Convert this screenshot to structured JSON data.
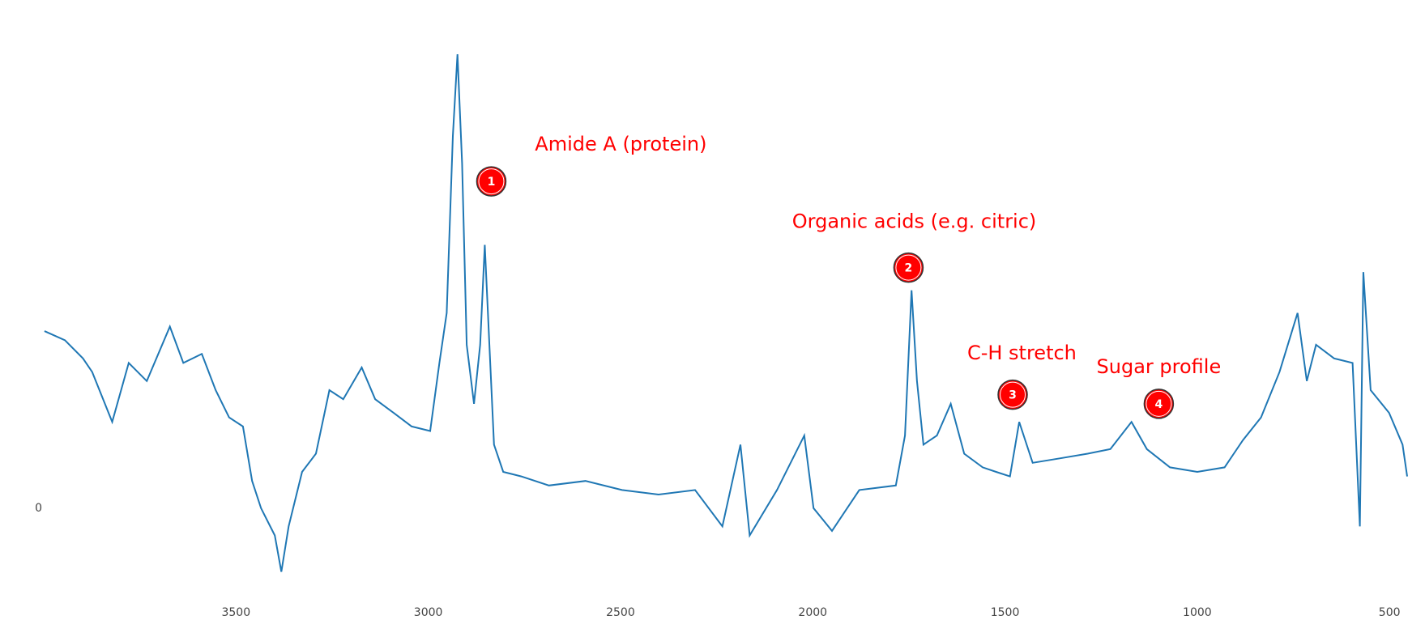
{
  "chart_data": {
    "type": "line",
    "x": [
      3998,
      3945,
      3898,
      3874,
      3822,
      3779,
      3732,
      3672,
      3637,
      3589,
      3553,
      3518,
      3482,
      3458,
      3435,
      3399,
      3382,
      3363,
      3328,
      3292,
      3257,
      3221,
      3173,
      3138,
      3090,
      3043,
      2995,
      2971,
      2952,
      2936,
      2924,
      2912,
      2900,
      2881,
      2865,
      2853,
      2841,
      2829,
      2805,
      2758,
      2686,
      2591,
      2496,
      2401,
      2306,
      2235,
      2188,
      2164,
      2093,
      2022,
      1998,
      1950,
      1879,
      1784,
      1760,
      1743,
      1729,
      1712,
      1677,
      1641,
      1606,
      1558,
      1523,
      1487,
      1463,
      1428,
      1356,
      1285,
      1226,
      1171,
      1131,
      1071,
      1000,
      929,
      881,
      834,
      786,
      739,
      715,
      691,
      644,
      596,
      577,
      568,
      549,
      501,
      466,
      454
    ],
    "values": [
      0.39,
      0.37,
      0.33,
      0.3,
      0.19,
      0.32,
      0.28,
      0.4,
      0.32,
      0.34,
      0.26,
      0.2,
      0.18,
      0.06,
      0.0,
      -0.06,
      -0.14,
      -0.04,
      0.08,
      0.12,
      0.26,
      0.24,
      0.31,
      0.24,
      0.21,
      0.18,
      0.17,
      0.32,
      0.43,
      0.82,
      1.0,
      0.76,
      0.36,
      0.23,
      0.36,
      0.58,
      0.36,
      0.14,
      0.08,
      0.07,
      0.05,
      0.06,
      0.04,
      0.03,
      0.04,
      -0.04,
      0.14,
      -0.06,
      0.04,
      0.16,
      0.0,
      -0.05,
      0.04,
      0.05,
      0.16,
      0.48,
      0.28,
      0.14,
      0.16,
      0.23,
      0.12,
      0.09,
      0.08,
      0.07,
      0.19,
      0.1,
      0.11,
      0.12,
      0.13,
      0.19,
      0.13,
      0.09,
      0.08,
      0.09,
      0.15,
      0.2,
      0.3,
      0.43,
      0.28,
      0.36,
      0.33,
      0.32,
      -0.04,
      0.52,
      0.26,
      0.21,
      0.14,
      0.07
    ],
    "color": "#1f77b4",
    "xlim": [
      4000,
      454
    ],
    "xticks": [
      3500,
      3000,
      2500,
      2000,
      1500,
      1000,
      500
    ],
    "ylim": [
      -0.2,
      1.05
    ],
    "yticks": [
      0
    ],
    "annotations": [
      {
        "text": "Amide A (protein)",
        "x": 2499,
        "y": 0.8,
        "marker": "1",
        "marker_x": 2836,
        "marker_y": 0.72
      },
      {
        "text": "Organic acids (e.g. citric)",
        "x": 1736,
        "y": 0.63,
        "marker": "2",
        "marker_x": 1751,
        "marker_y": 0.53
      },
      {
        "text": "C-H stretch",
        "x": 1456,
        "y": 0.34,
        "marker": "3",
        "marker_x": 1480,
        "marker_y": 0.25
      },
      {
        "text": "Sugar profile",
        "x": 1100,
        "y": 0.31,
        "marker": "4",
        "marker_x": 1100,
        "marker_y": 0.23
      }
    ]
  }
}
